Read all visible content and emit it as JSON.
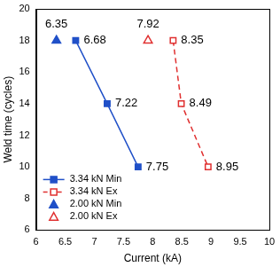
{
  "chart_data": {
    "type": "scatter",
    "x_label": "Current (kA)",
    "y_label": "Weld time (cycles)",
    "xlim": [
      6,
      10
    ],
    "xticks": [
      6,
      6.5,
      7,
      7.5,
      8,
      8.5,
      9,
      9.5,
      10
    ],
    "ylim": [
      6,
      20
    ],
    "yticks": [
      6,
      8,
      10,
      12,
      14,
      16,
      18,
      20
    ],
    "grid": false,
    "legend": "lower left",
    "data_labels": true,
    "series": [
      {
        "name": "3.34 kN Min",
        "color": "#2050c8",
        "marker": "square",
        "line_style": "solid",
        "x": [
          6.68,
          7.22,
          7.75
        ],
        "values": [
          18,
          14,
          10
        ]
      },
      {
        "name": "3.34 kN Ex",
        "color": "#e03030",
        "marker": "open square",
        "line_style": "dashed",
        "x": [
          8.35,
          8.49,
          8.95
        ],
        "values": [
          18,
          14,
          10
        ]
      },
      {
        "name": "2.00 kN Min",
        "color": "#2050c8",
        "marker": "triangle",
        "line_style": "none",
        "x": [
          6.35
        ],
        "values": [
          18
        ]
      },
      {
        "name": "2.00 kN Ex",
        "color": "#e03030",
        "marker": "open triangle",
        "line_style": "none",
        "x": [
          7.92
        ],
        "values": [
          18
        ]
      }
    ]
  }
}
